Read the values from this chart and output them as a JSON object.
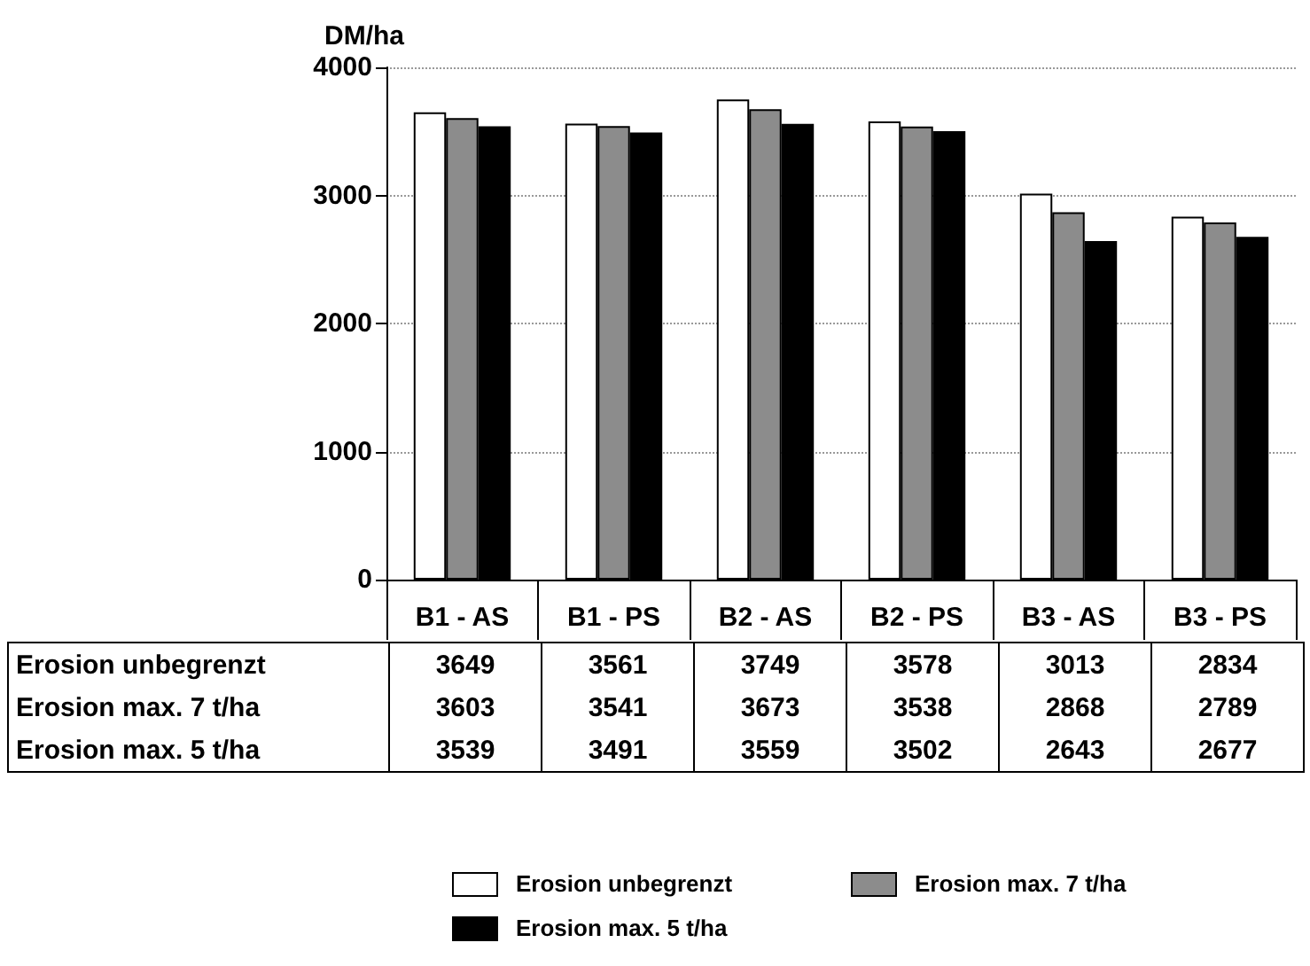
{
  "chart_data": {
    "type": "bar",
    "ylabel": "DM/ha",
    "categories": [
      "B1 - AS",
      "B1 - PS",
      "B2 - AS",
      "B2 - PS",
      "B3 - AS",
      "B3 - PS"
    ],
    "series": [
      {
        "name": "Erosion unbegrenzt",
        "color": "#ffffff",
        "values": [
          3649,
          3561,
          3749,
          3578,
          3013,
          2834
        ]
      },
      {
        "name": "Erosion max. 7 t/ha",
        "color": "#8c8c8c",
        "values": [
          3603,
          3541,
          3673,
          3538,
          2868,
          2789
        ]
      },
      {
        "name": "Erosion max. 5 t/ha",
        "color": "#000000",
        "values": [
          3539,
          3491,
          3559,
          3502,
          2643,
          2677
        ]
      }
    ],
    "ylim": [
      0,
      4000
    ],
    "yticks": [
      0,
      1000,
      2000,
      3000,
      4000
    ],
    "grid": "y",
    "legend": "bottom",
    "data_labels": true
  }
}
